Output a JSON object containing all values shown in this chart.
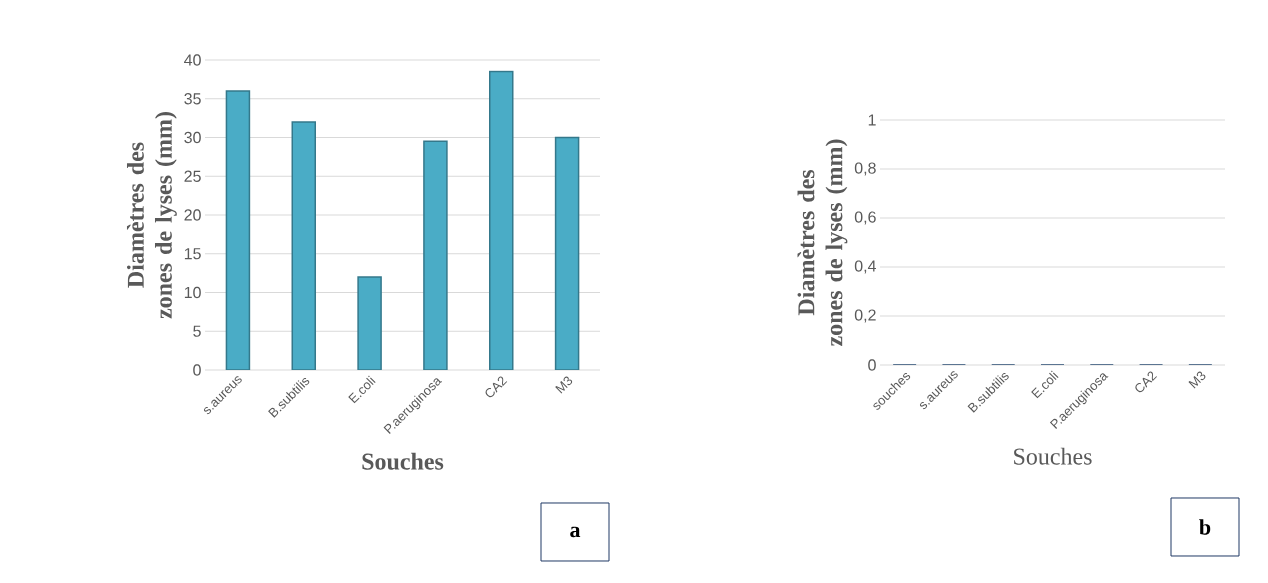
{
  "chart_data": [
    {
      "type": "bar",
      "xlabel": "Souches",
      "ylabel": "Diamètres des zones de lyses (mm)",
      "categories": [
        "s.aureus",
        "B.subtilis",
        "E.coli",
        "P.aeruginosa",
        "CA2",
        "M3"
      ],
      "values": [
        36,
        32,
        12,
        29.5,
        38.5,
        30
      ],
      "color": "#4aacc6",
      "ylim": [
        0,
        40
      ],
      "yticks": [
        0,
        5,
        10,
        15,
        20,
        25,
        30,
        35,
        40
      ],
      "grid": "y",
      "annotations": [
        "a"
      ]
    },
    {
      "type": "bar",
      "xlabel": "Souches",
      "ylabel": "Diamètres des zones de lyses (mm)",
      "categories": [
        "souches",
        "s.aureus",
        "B.subtilis",
        "E.coli",
        "P.aeruginosa",
        "CA2",
        "M3"
      ],
      "values": [
        0,
        0,
        0,
        0,
        0,
        0,
        0
      ],
      "color": "#3e6fa6",
      "ylim": [
        0,
        1
      ],
      "yticks": [
        0,
        {
          "value": 0.2,
          "label": "0,2"
        },
        {
          "value": 0.4,
          "label": "0,4"
        },
        {
          "value": 0.6,
          "label": "0,6"
        },
        {
          "value": 0.8,
          "label": "0,8"
        },
        1
      ],
      "grid": "y",
      "annotations": [
        "b"
      ]
    }
  ]
}
